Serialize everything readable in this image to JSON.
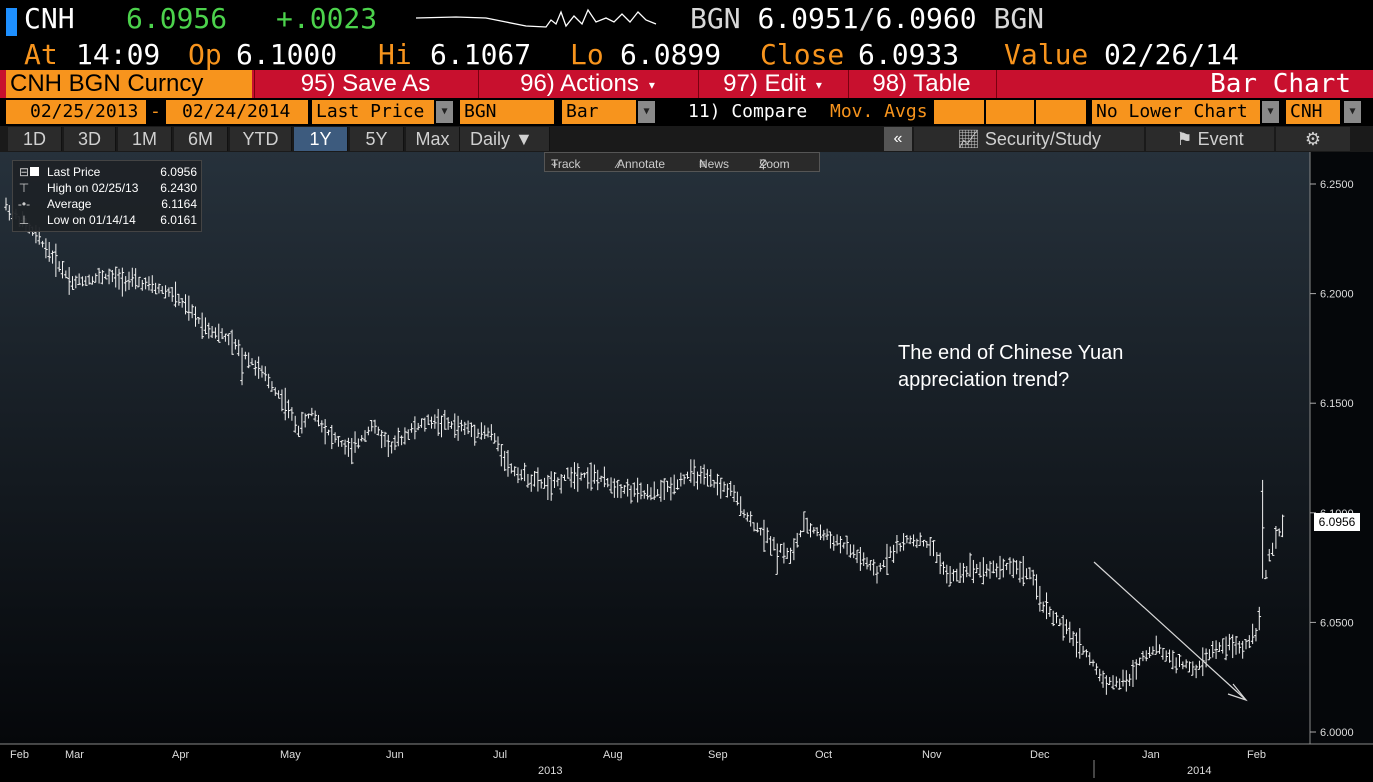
{
  "header": {
    "ticker": "CNH",
    "last": "6.0956",
    "change": "+.0023",
    "bid_source": "BGN",
    "bid": "6.0951",
    "ask": "6.0960",
    "ask_source": "BGN",
    "accent_color": "#f7941d",
    "up_color": "#4cd24c"
  },
  "quote": {
    "at_label": "At",
    "at_value": "14:09",
    "open_label": "Op",
    "open_value": "6.1000",
    "high_label": "Hi",
    "high_value": "6.1067",
    "low_label": "Lo",
    "low_value": "6.0899",
    "close_label": "Close",
    "close_value": "6.0933",
    "value_label": "Value",
    "value_value": "02/26/14"
  },
  "commandbar": {
    "security": "CNH BGN Curncy",
    "save_as": "95) Save As",
    "actions": "96) Actions",
    "edit": "97) Edit",
    "table": "98) Table",
    "chart_type_title": "Bar Chart"
  },
  "settings": {
    "start_date": "02/25/2013",
    "dash": "-",
    "end_date": "02/24/2014",
    "field": "Last Price",
    "source": "BGN",
    "style": "Bar",
    "compare": "11) Compare",
    "mov_avgs": "Mov. Avgs",
    "lower_chart": "No Lower Chart",
    "currency": "CNH"
  },
  "ranges": {
    "tabs": [
      "1D",
      "3D",
      "1M",
      "6M",
      "YTD",
      "1Y",
      "5Y",
      "Max"
    ],
    "active": "1Y",
    "period": "Daily",
    "collapse": "«",
    "security_study": "Security/Study",
    "event": "Event",
    "gear": "⚙"
  },
  "tools": {
    "track": "Track",
    "annotate": "Annotate",
    "news": "News",
    "zoom": "Zoom"
  },
  "legend": {
    "last_label": "Last Price",
    "last_value": "6.0956",
    "high_label": "High on 02/25/13",
    "high_value": "6.2430",
    "avg_label": "Average",
    "avg_value": "6.1164",
    "low_label": "Low on 01/14/14",
    "low_value": "6.0161"
  },
  "annotation": {
    "line1": "The end of Chinese Yuan",
    "line2": "appreciation trend?"
  },
  "last_badge": "6.0956",
  "chart_data": {
    "type": "bar",
    "subtype": "ohlc",
    "ylim": [
      6.0,
      6.25
    ],
    "y_ticks": [
      "6.2500",
      "6.2000",
      "6.1500",
      "6.1000",
      "6.0500",
      "6.0000"
    ],
    "y_tick_values": [
      6.25,
      6.2,
      6.15,
      6.1,
      6.05,
      6.0
    ],
    "x_month_labels": [
      "Feb",
      "Mar",
      "Apr",
      "May",
      "Jun",
      "Jul",
      "Aug",
      "Sep",
      "Oct",
      "Nov",
      "Dec",
      "Jan",
      "Feb"
    ],
    "x_year_labels": [
      "2013",
      "2014"
    ],
    "grid": false,
    "legend_placement": "top-left",
    "trend_path": [
      [
        0,
        6.24
      ],
      [
        10,
        6.225
      ],
      [
        20,
        6.205
      ],
      [
        30,
        6.208
      ],
      [
        40,
        6.205
      ],
      [
        50,
        6.2
      ],
      [
        60,
        6.185
      ],
      [
        66,
        6.18
      ],
      [
        72,
        6.172
      ],
      [
        78,
        6.162
      ],
      [
        84,
        6.15
      ],
      [
        88,
        6.138
      ],
      [
        92,
        6.146
      ],
      [
        98,
        6.135
      ],
      [
        104,
        6.128
      ],
      [
        110,
        6.14
      ],
      [
        116,
        6.13
      ],
      [
        122,
        6.138
      ],
      [
        128,
        6.142
      ],
      [
        134,
        6.14
      ],
      [
        140,
        6.138
      ],
      [
        146,
        6.136
      ],
      [
        152,
        6.12
      ],
      [
        158,
        6.115
      ],
      [
        164,
        6.112
      ],
      [
        170,
        6.118
      ],
      [
        176,
        6.117
      ],
      [
        182,
        6.113
      ],
      [
        188,
        6.11
      ],
      [
        194,
        6.108
      ],
      [
        200,
        6.112
      ],
      [
        206,
        6.118
      ],
      [
        212,
        6.114
      ],
      [
        218,
        6.11
      ],
      [
        224,
        6.096
      ],
      [
        230,
        6.087
      ],
      [
        236,
        6.08
      ],
      [
        240,
        6.094
      ],
      [
        246,
        6.09
      ],
      [
        252,
        6.085
      ],
      [
        258,
        6.078
      ],
      [
        262,
        6.072
      ],
      [
        266,
        6.082
      ],
      [
        272,
        6.088
      ],
      [
        278,
        6.085
      ],
      [
        284,
        6.07
      ],
      [
        290,
        6.075
      ],
      [
        296,
        6.074
      ],
      [
        302,
        6.076
      ],
      [
        308,
        6.072
      ],
      [
        312,
        6.058
      ],
      [
        318,
        6.048
      ],
      [
        324,
        6.038
      ],
      [
        330,
        6.024
      ],
      [
        334,
        6.022
      ],
      [
        338,
        6.024
      ],
      [
        342,
        6.035
      ],
      [
        346,
        6.038
      ],
      [
        352,
        6.032
      ],
      [
        358,
        6.028
      ],
      [
        362,
        6.036
      ],
      [
        368,
        6.04
      ],
      [
        372,
        6.038
      ],
      [
        376,
        6.046
      ],
      [
        380,
        6.08
      ],
      [
        384,
        6.094
      ]
    ]
  }
}
